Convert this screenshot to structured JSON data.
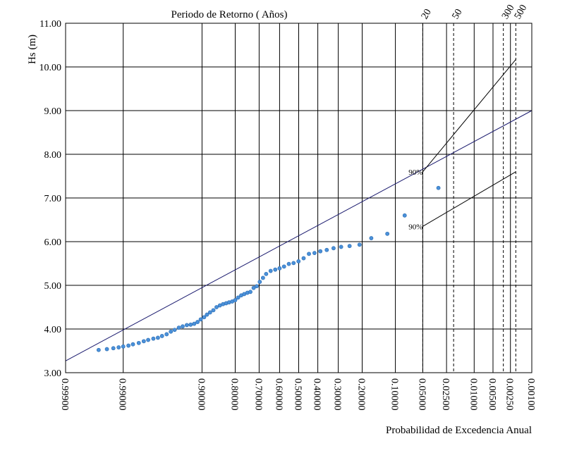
{
  "chart_data": {
    "type": "scatter",
    "title": "Periodo de Retorno ( Años)",
    "xlabel": "Probabilidad de Excedencia Anual",
    "ylabel": "Hs  (m)",
    "ylim": [
      3.0,
      11.0
    ],
    "y_ticks": [
      "3.00",
      "4.00",
      "5.00",
      "6.00",
      "7.00",
      "8.00",
      "9.00",
      "10.00",
      "11.00"
    ],
    "x_ticks": [
      {
        "label": "0.99900",
        "p": 0.999,
        "line": "none"
      },
      {
        "label": "0.99000",
        "p": 0.99,
        "line": "solid"
      },
      {
        "label": "0.90000",
        "p": 0.9,
        "line": "solid"
      },
      {
        "label": "0.80000",
        "p": 0.8,
        "line": "solid"
      },
      {
        "label": "0.70000",
        "p": 0.7,
        "line": "solid"
      },
      {
        "label": "0.60000",
        "p": 0.6,
        "line": "solid"
      },
      {
        "label": "0.50000",
        "p": 0.5,
        "line": "solid"
      },
      {
        "label": "0.40000",
        "p": 0.4,
        "line": "solid"
      },
      {
        "label": "0.30000",
        "p": 0.3,
        "line": "solid"
      },
      {
        "label": "0.20000",
        "p": 0.2,
        "line": "solid"
      },
      {
        "label": "0.10000",
        "p": 0.1,
        "line": "solid"
      },
      {
        "label": "0.05000",
        "p": 0.05,
        "line": "solid"
      },
      {
        "label": "0.02500",
        "p": 0.025,
        "line": "solid"
      },
      {
        "label": "0.01000",
        "p": 0.01,
        "line": "solid"
      },
      {
        "label": "0.00500",
        "p": 0.005,
        "line": "solid"
      },
      {
        "label": "0.00250",
        "p": 0.0025,
        "line": "solid"
      },
      {
        "label": "0.00100",
        "p": 0.001,
        "line": "none"
      }
    ],
    "return_periods": [
      {
        "label": "20",
        "p": 0.05
      },
      {
        "label": "50",
        "p": 0.02
      },
      {
        "label": "300",
        "p": 0.003333
      },
      {
        "label": "500",
        "p": 0.002
      }
    ],
    "fit_line": {
      "color": "#1a1a6e",
      "points": [
        [
          0.999,
          3.27
        ],
        [
          0.001,
          9.0
        ]
      ]
    },
    "confidence_bands": [
      {
        "label": "90%",
        "color": "#000000",
        "points": [
          [
            0.05,
            7.6
          ],
          [
            0.05,
            7.6
          ],
          [
            0.002,
            10.17
          ]
        ]
      },
      {
        "label": "90%",
        "color": "#000000",
        "points": [
          [
            0.05,
            6.35
          ],
          [
            0.002,
            7.6
          ]
        ]
      }
    ],
    "point_color": "#4a90d9",
    "points": [
      [
        0.996,
        3.52
      ],
      [
        0.9945,
        3.54
      ],
      [
        0.993,
        3.56
      ],
      [
        0.9915,
        3.58
      ],
      [
        0.99,
        3.6
      ],
      [
        0.988,
        3.62
      ],
      [
        0.986,
        3.65
      ],
      [
        0.983,
        3.68
      ],
      [
        0.98,
        3.72
      ],
      [
        0.977,
        3.75
      ],
      [
        0.973,
        3.78
      ],
      [
        0.969,
        3.8
      ],
      [
        0.965,
        3.84
      ],
      [
        0.96,
        3.88
      ],
      [
        0.955,
        3.94
      ],
      [
        0.95,
        3.98
      ],
      [
        0.944,
        4.03
      ],
      [
        0.938,
        4.06
      ],
      [
        0.931,
        4.09
      ],
      [
        0.924,
        4.1
      ],
      [
        0.917,
        4.12
      ],
      [
        0.91,
        4.16
      ],
      [
        0.903,
        4.22
      ],
      [
        0.895,
        4.27
      ],
      [
        0.888,
        4.33
      ],
      [
        0.88,
        4.38
      ],
      [
        0.871,
        4.43
      ],
      [
        0.862,
        4.5
      ],
      [
        0.852,
        4.54
      ],
      [
        0.842,
        4.57
      ],
      [
        0.832,
        4.59
      ],
      [
        0.822,
        4.61
      ],
      [
        0.811,
        4.63
      ],
      [
        0.8,
        4.66
      ],
      [
        0.789,
        4.72
      ],
      [
        0.777,
        4.77
      ],
      [
        0.765,
        4.8
      ],
      [
        0.752,
        4.83
      ],
      [
        0.739,
        4.85
      ],
      [
        0.725,
        4.94
      ],
      [
        0.711,
        4.98
      ],
      [
        0.697,
        5.08
      ],
      [
        0.682,
        5.17
      ],
      [
        0.667,
        5.26
      ],
      [
        0.645,
        5.33
      ],
      [
        0.622,
        5.36
      ],
      [
        0.6,
        5.39
      ],
      [
        0.577,
        5.43
      ],
      [
        0.552,
        5.49
      ],
      [
        0.527,
        5.51
      ],
      [
        0.501,
        5.55
      ],
      [
        0.474,
        5.62
      ],
      [
        0.446,
        5.72
      ],
      [
        0.417,
        5.74
      ],
      [
        0.387,
        5.78
      ],
      [
        0.355,
        5.81
      ],
      [
        0.322,
        5.85
      ],
      [
        0.287,
        5.88
      ],
      [
        0.25,
        5.9
      ],
      [
        0.21,
        5.93
      ],
      [
        0.168,
        6.08
      ],
      [
        0.12,
        6.18
      ],
      [
        0.08,
        6.6
      ],
      [
        0.032,
        7.23
      ]
    ]
  }
}
